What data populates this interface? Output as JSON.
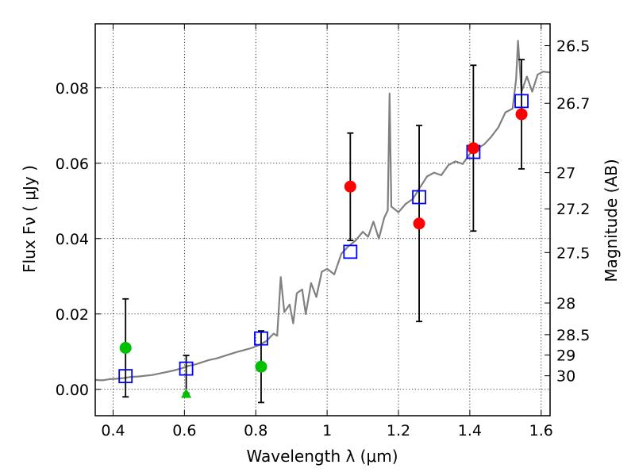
{
  "chart_data": {
    "type": "scatter",
    "title": "",
    "xlabel": "Wavelength  λ (μm)",
    "ylabel": "Flux  Fν  ( μJy )",
    "y2label": "Magnitude (AB)",
    "xlim": [
      0.35,
      1.625
    ],
    "ylim": [
      -0.007,
      0.097
    ],
    "grid": true,
    "x_ticks": [
      0.4,
      0.6,
      0.8,
      1.0,
      1.2,
      1.4,
      1.6
    ],
    "x_tick_labels": [
      "0.4",
      "0.6",
      "0.8",
      "1",
      "1.2",
      "1.4",
      "1.6"
    ],
    "y_ticks": [
      0.0,
      0.02,
      0.04,
      0.06,
      0.08
    ],
    "y_tick_labels": [
      "0.00",
      "0.02",
      "0.04",
      "0.06",
      "0.08"
    ],
    "magnitude_ticks": [
      {
        "label": "26.5",
        "flux": 0.0912
      },
      {
        "label": "26.7",
        "flux": 0.0759
      },
      {
        "label": "27",
        "flux": 0.0575
      },
      {
        "label": "27.2",
        "flux": 0.0479
      },
      {
        "label": "27.5",
        "flux": 0.0363
      },
      {
        "label": "28",
        "flux": 0.0229
      },
      {
        "label": "28.5",
        "flux": 0.0145
      },
      {
        "label": "29",
        "flux": 0.0091
      },
      {
        "label": "30",
        "flux": 0.0036
      }
    ],
    "series": [
      {
        "kind": "line",
        "color": "#808080",
        "points": [
          [
            0.35,
            0.0025
          ],
          [
            0.37,
            0.0024
          ],
          [
            0.39,
            0.0027
          ],
          [
            0.41,
            0.0028
          ],
          [
            0.43,
            0.003
          ],
          [
            0.45,
            0.0033
          ],
          [
            0.47,
            0.0034
          ],
          [
            0.49,
            0.0036
          ],
          [
            0.51,
            0.0038
          ],
          [
            0.53,
            0.0042
          ],
          [
            0.55,
            0.0046
          ],
          [
            0.57,
            0.005
          ],
          [
            0.59,
            0.0055
          ],
          [
            0.61,
            0.0062
          ],
          [
            0.63,
            0.0066
          ],
          [
            0.65,
            0.0072
          ],
          [
            0.67,
            0.0078
          ],
          [
            0.69,
            0.0082
          ],
          [
            0.71,
            0.0088
          ],
          [
            0.73,
            0.0094
          ],
          [
            0.75,
            0.01
          ],
          [
            0.77,
            0.0105
          ],
          [
            0.79,
            0.011
          ],
          [
            0.81,
            0.0118
          ],
          [
            0.83,
            0.0128
          ],
          [
            0.85,
            0.0148
          ],
          [
            0.86,
            0.0142
          ],
          [
            0.87,
            0.0298
          ],
          [
            0.88,
            0.0205
          ],
          [
            0.895,
            0.0225
          ],
          [
            0.905,
            0.0175
          ],
          [
            0.915,
            0.0255
          ],
          [
            0.93,
            0.0265
          ],
          [
            0.94,
            0.02
          ],
          [
            0.955,
            0.0282
          ],
          [
            0.97,
            0.0245
          ],
          [
            0.985,
            0.0312
          ],
          [
            1.0,
            0.032
          ],
          [
            1.02,
            0.0305
          ],
          [
            1.04,
            0.036
          ],
          [
            1.06,
            0.038
          ],
          [
            1.08,
            0.0395
          ],
          [
            1.1,
            0.0418
          ],
          [
            1.115,
            0.0405
          ],
          [
            1.13,
            0.0445
          ],
          [
            1.145,
            0.04
          ],
          [
            1.16,
            0.0455
          ],
          [
            1.17,
            0.0475
          ],
          [
            1.175,
            0.0785
          ],
          [
            1.18,
            0.0485
          ],
          [
            1.2,
            0.047
          ],
          [
            1.22,
            0.0492
          ],
          [
            1.24,
            0.0505
          ],
          [
            1.26,
            0.0535
          ],
          [
            1.28,
            0.0565
          ],
          [
            1.3,
            0.0575
          ],
          [
            1.32,
            0.0568
          ],
          [
            1.34,
            0.0595
          ],
          [
            1.36,
            0.0605
          ],
          [
            1.38,
            0.0598
          ],
          [
            1.4,
            0.0625
          ],
          [
            1.42,
            0.0638
          ],
          [
            1.44,
            0.065
          ],
          [
            1.46,
            0.067
          ],
          [
            1.48,
            0.0695
          ],
          [
            1.5,
            0.0735
          ],
          [
            1.52,
            0.0745
          ],
          [
            1.53,
            0.0825
          ],
          [
            1.535,
            0.0925
          ],
          [
            1.545,
            0.079
          ],
          [
            1.56,
            0.083
          ],
          [
            1.575,
            0.079
          ],
          [
            1.59,
            0.0835
          ],
          [
            1.605,
            0.0843
          ],
          [
            1.625,
            0.0841
          ]
        ]
      },
      {
        "kind": "errorbar",
        "color": "#000000",
        "bars": [
          [
            0.435,
            -0.002,
            0.024
          ],
          [
            0.605,
            -0.001,
            0.009
          ],
          [
            0.815,
            -0.0035,
            0.0155
          ],
          [
            1.065,
            0.0395,
            0.068
          ],
          [
            1.258,
            0.018,
            0.07
          ],
          [
            1.41,
            0.042,
            0.086
          ],
          [
            1.545,
            0.0585,
            0.0875
          ]
        ]
      },
      {
        "kind": "open-square",
        "color": "#0000ff",
        "points": [
          [
            0.435,
            0.0035
          ],
          [
            0.605,
            0.0055
          ],
          [
            0.815,
            0.0135
          ],
          [
            1.065,
            0.0365
          ],
          [
            1.258,
            0.051
          ],
          [
            1.41,
            0.063
          ],
          [
            1.545,
            0.0765
          ]
        ]
      },
      {
        "kind": "filled-circle",
        "color": "#00c000",
        "points": [
          [
            0.435,
            0.011
          ],
          [
            0.815,
            0.006
          ]
        ]
      },
      {
        "kind": "filled-triangle",
        "color": "#00c000",
        "points": [
          [
            0.605,
            -0.0012
          ]
        ]
      },
      {
        "kind": "filled-circle",
        "color": "#ff0000",
        "points": [
          [
            1.065,
            0.0538
          ],
          [
            1.258,
            0.044
          ],
          [
            1.41,
            0.064
          ],
          [
            1.545,
            0.073
          ]
        ]
      }
    ]
  }
}
